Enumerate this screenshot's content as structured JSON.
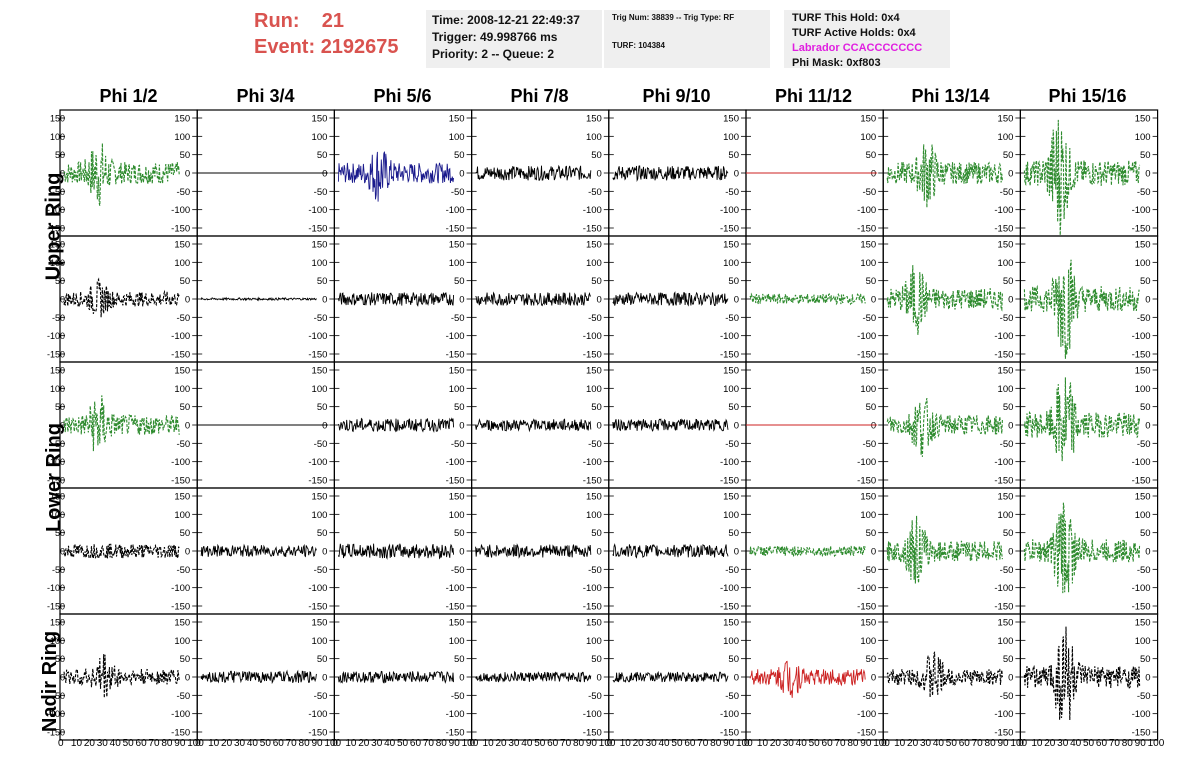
{
  "header": {
    "run_label": "Run:",
    "run_value": "21",
    "event_label": "Event:",
    "event_value": "2192675",
    "time": "Time: 2008-12-21 22:49:37",
    "trigger": "Trigger: 49.998766 ms",
    "priority": "Priority: 2 -- Queue: 2",
    "trig_num": "Trig Num: 38839 -- Trig Type: RF",
    "turf": "TURF: 104384",
    "turf_this_hold": "TURF This Hold: 0x4",
    "turf_active_holds": "TURF Active Holds: 0x4",
    "labrador": "Labrador CCACCCCCCC",
    "phi_mask": "Phi Mask: 0xf803"
  },
  "colors": {
    "accent_red": "#d9534f",
    "magenta": "#e020e0",
    "green": "#2e8b2e",
    "blue": "#1a1a8c",
    "red_trace": "#cc2222",
    "black": "#000000"
  },
  "columns": [
    "Phi 1/2",
    "Phi 3/4",
    "Phi 5/6",
    "Phi 7/8",
    "Phi 9/10",
    "Phi 11/12",
    "Phi 13/14",
    "Phi 15/16"
  ],
  "rows": [
    "Upper Ring",
    "Lower Ring",
    "Nadir Ring"
  ],
  "y_tick_labels": [
    "150",
    "100",
    "50",
    "0",
    "-50",
    "-100",
    "-150"
  ],
  "x_tick_labels": [
    "0",
    "10",
    "20",
    "30",
    "40",
    "50",
    "60",
    "70",
    "80",
    "90",
    "100"
  ],
  "waveform_rows": [
    [
      {
        "color": "green",
        "dashed": true,
        "amp": 30,
        "burst_at": 30,
        "burst_amp": 70,
        "flat": false
      },
      {
        "color": "black",
        "dashed": false,
        "amp": 0,
        "burst_at": 0,
        "burst_amp": 0,
        "flat": true
      },
      {
        "color": "blue",
        "dashed": false,
        "amp": 28,
        "burst_at": 35,
        "burst_amp": 55,
        "flat": false
      },
      {
        "color": "black",
        "dashed": false,
        "amp": 20,
        "burst_at": 0,
        "burst_amp": 0,
        "flat": false
      },
      {
        "color": "black",
        "dashed": false,
        "amp": 20,
        "burst_at": 0,
        "burst_amp": 0,
        "flat": false
      },
      {
        "color": "red",
        "dashed": false,
        "amp": 0,
        "burst_at": 0,
        "burst_amp": 0,
        "flat": true
      },
      {
        "color": "green",
        "dashed": true,
        "amp": 30,
        "burst_at": 35,
        "burst_amp": 70,
        "flat": false
      },
      {
        "color": "green",
        "dashed": true,
        "amp": 35,
        "burst_at": 30,
        "burst_amp": 150,
        "flat": false
      }
    ],
    [
      {
        "color": "black",
        "dashed": true,
        "amp": 20,
        "burst_at": 30,
        "burst_amp": 35,
        "flat": false
      },
      {
        "color": "black",
        "dashed": false,
        "amp": 3,
        "burst_at": 0,
        "burst_amp": 0,
        "flat": false
      },
      {
        "color": "black",
        "dashed": false,
        "amp": 18,
        "burst_at": 0,
        "burst_amp": 0,
        "flat": false
      },
      {
        "color": "black",
        "dashed": false,
        "amp": 18,
        "burst_at": 0,
        "burst_amp": 0,
        "flat": false
      },
      {
        "color": "black",
        "dashed": false,
        "amp": 18,
        "burst_at": 0,
        "burst_amp": 0,
        "flat": false
      },
      {
        "color": "green",
        "dashed": true,
        "amp": 14,
        "burst_at": 0,
        "burst_amp": 0,
        "flat": false
      },
      {
        "color": "green",
        "dashed": true,
        "amp": 30,
        "burst_at": 25,
        "burst_amp": 75,
        "flat": false
      },
      {
        "color": "green",
        "dashed": true,
        "amp": 35,
        "burst_at": 35,
        "burst_amp": 140,
        "flat": false
      }
    ],
    [
      {
        "color": "green",
        "dashed": true,
        "amp": 28,
        "burst_at": 30,
        "burst_amp": 65,
        "flat": false
      },
      {
        "color": "black",
        "dashed": false,
        "amp": 0,
        "burst_at": 0,
        "burst_amp": 0,
        "flat": true
      },
      {
        "color": "black",
        "dashed": false,
        "amp": 18,
        "burst_at": 0,
        "burst_amp": 0,
        "flat": false
      },
      {
        "color": "black",
        "dashed": false,
        "amp": 16,
        "burst_at": 0,
        "burst_amp": 0,
        "flat": false
      },
      {
        "color": "black",
        "dashed": false,
        "amp": 16,
        "burst_at": 0,
        "burst_amp": 0,
        "flat": false
      },
      {
        "color": "red",
        "dashed": false,
        "amp": 0,
        "burst_at": 0,
        "burst_amp": 0,
        "flat": true
      },
      {
        "color": "green",
        "dashed": true,
        "amp": 28,
        "burst_at": 30,
        "burst_amp": 65,
        "flat": false
      },
      {
        "color": "green",
        "dashed": true,
        "amp": 35,
        "burst_at": 35,
        "burst_amp": 130,
        "flat": false
      }
    ],
    [
      {
        "color": "black",
        "dashed": true,
        "amp": 20,
        "burst_at": 0,
        "burst_amp": 0,
        "flat": false
      },
      {
        "color": "black",
        "dashed": false,
        "amp": 16,
        "burst_at": 0,
        "burst_amp": 0,
        "flat": false
      },
      {
        "color": "black",
        "dashed": false,
        "amp": 20,
        "burst_at": 0,
        "burst_amp": 0,
        "flat": false
      },
      {
        "color": "black",
        "dashed": false,
        "amp": 18,
        "burst_at": 0,
        "burst_amp": 0,
        "flat": false
      },
      {
        "color": "black",
        "dashed": false,
        "amp": 18,
        "burst_at": 0,
        "burst_amp": 0,
        "flat": false
      },
      {
        "color": "green",
        "dashed": true,
        "amp": 14,
        "burst_at": 0,
        "burst_amp": 0,
        "flat": false
      },
      {
        "color": "green",
        "dashed": true,
        "amp": 28,
        "burst_at": 25,
        "burst_amp": 75,
        "flat": false
      },
      {
        "color": "green",
        "dashed": true,
        "amp": 32,
        "burst_at": 35,
        "burst_amp": 130,
        "flat": false
      }
    ],
    [
      {
        "color": "black",
        "dashed": true,
        "amp": 22,
        "burst_at": 35,
        "burst_amp": 50,
        "flat": false
      },
      {
        "color": "black",
        "dashed": false,
        "amp": 16,
        "burst_at": 0,
        "burst_amp": 0,
        "flat": false
      },
      {
        "color": "black",
        "dashed": false,
        "amp": 16,
        "burst_at": 0,
        "burst_amp": 0,
        "flat": false
      },
      {
        "color": "black",
        "dashed": false,
        "amp": 14,
        "burst_at": 0,
        "burst_amp": 0,
        "flat": false
      },
      {
        "color": "black",
        "dashed": false,
        "amp": 14,
        "burst_at": 0,
        "burst_amp": 0,
        "flat": false
      },
      {
        "color": "red",
        "dashed": false,
        "amp": 22,
        "burst_at": 35,
        "burst_amp": 45,
        "flat": false
      },
      {
        "color": "black",
        "dashed": true,
        "amp": 22,
        "burst_at": 40,
        "burst_amp": 55,
        "flat": false
      },
      {
        "color": "black",
        "dashed": true,
        "amp": 30,
        "burst_at": 35,
        "burst_amp": 150,
        "flat": false
      }
    ]
  ]
}
